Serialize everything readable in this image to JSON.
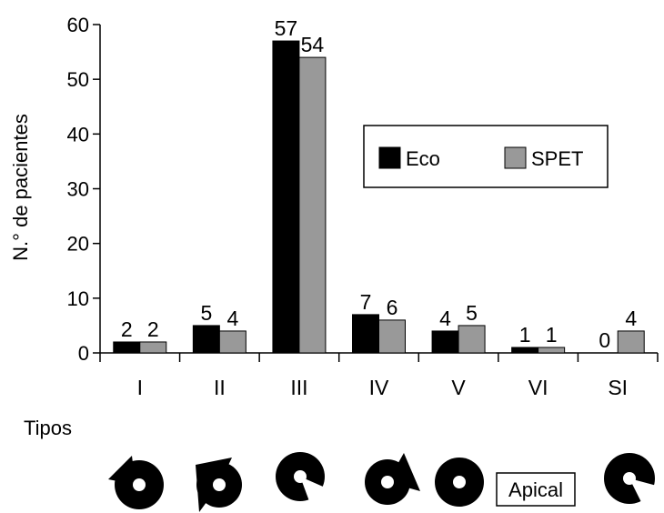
{
  "chart_data": {
    "type": "bar",
    "categories": [
      "I",
      "II",
      "III",
      "IV",
      "V",
      "VI",
      "SI"
    ],
    "series": [
      {
        "name": "Eco",
        "values": [
          2,
          5,
          57,
          7,
          4,
          1,
          0
        ],
        "color": "#000000"
      },
      {
        "name": "SPET",
        "values": [
          2,
          4,
          54,
          6,
          5,
          1,
          4
        ],
        "color": "#999999"
      }
    ],
    "ylabel": "N.° de pacientes",
    "xlabel": "",
    "ylim": [
      0,
      60
    ],
    "yticks": [
      0,
      10,
      20,
      30,
      40,
      50,
      60
    ],
    "grid": false,
    "legend_position": "top-right"
  },
  "footer": {
    "types_label": "Tipos",
    "apical_label": "Apical",
    "icons": [
      "defect-ring-icon",
      "defect-ring-icon",
      "defect-ring-icon",
      "defect-ring-icon",
      "defect-ring-icon",
      "apical-box",
      "defect-ring-icon"
    ]
  }
}
